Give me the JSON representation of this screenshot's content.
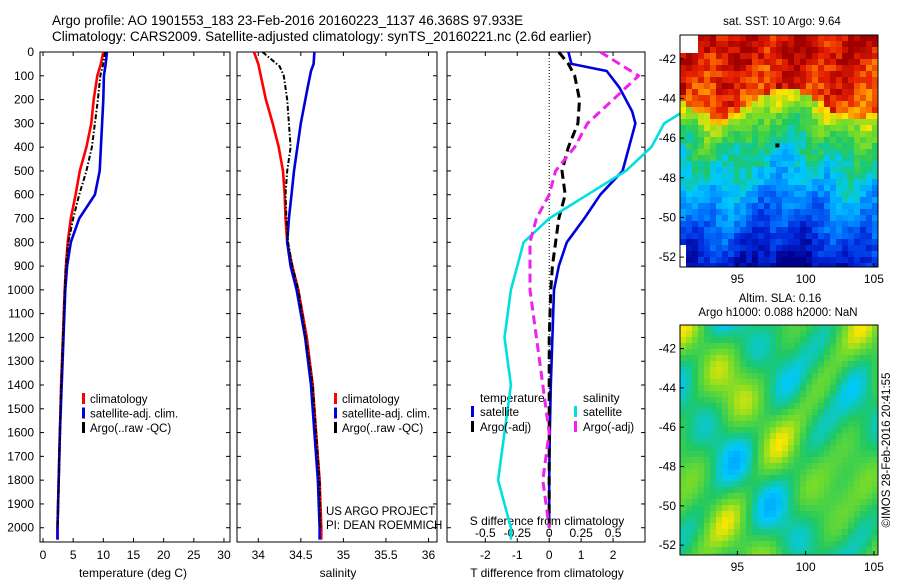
{
  "header": {
    "line1": "Argo profile: AO 1901553_183 23-Feb-2016 20160223_1137 46.368S 97.933E",
    "line2": "Climatology: CARS2009. Satellite-adjusted climatology: synTS_20160221.nc (2.6d earlier)"
  },
  "colors": {
    "climatology": "#ff0000",
    "satellite": "#0000dd",
    "argo": "#000000",
    "sat_salinity_diff": "#00e0e0",
    "argo_salinity_diff": "#ee22ee"
  },
  "credits": {
    "line1": "US ARGO PROJECT",
    "line2": "PI: DEAN ROEMMICH",
    "imos": "©IMOS 28-Feb-2016 20:41:55"
  },
  "chart_data": [
    {
      "type": "line",
      "xlabel": "temperature (deg C)",
      "xlim": [
        -0.5,
        31
      ],
      "xticks": [
        "0",
        "5",
        "10",
        "15",
        "20",
        "25",
        "30"
      ],
      "ylim": [
        2060,
        0
      ],
      "yticks": [
        "0",
        "100",
        "200",
        "300",
        "400",
        "500",
        "600",
        "700",
        "800",
        "900",
        "1000",
        "1100",
        "1200",
        "1300",
        "1400",
        "1500",
        "1600",
        "1700",
        "1800",
        "1900",
        "2000"
      ],
      "legend": [
        "climatology",
        "satellite-adj. clim.",
        "Argo(..raw -QC)"
      ],
      "series": [
        {
          "name": "climatology",
          "style": "solid",
          "depth": [
            0,
            50,
            100,
            200,
            300,
            400,
            500,
            600,
            700,
            800,
            900,
            1000,
            1200,
            1400,
            1600,
            1800,
            2000,
            2050
          ],
          "values": [
            10.0,
            9.6,
            9.0,
            8.4,
            8.0,
            7.2,
            6.1,
            5.4,
            4.6,
            4.1,
            3.8,
            3.6,
            3.3,
            3.0,
            2.8,
            2.6,
            2.4,
            2.4
          ]
        },
        {
          "name": "satellite-adj. clim.",
          "style": "solid",
          "depth": [
            0,
            50,
            100,
            200,
            300,
            400,
            500,
            600,
            700,
            800,
            900,
            1000,
            1200,
            1400,
            1600,
            1800,
            2000,
            2050
          ],
          "values": [
            10.6,
            10.4,
            10.1,
            10.0,
            9.8,
            9.6,
            9.4,
            8.6,
            6.0,
            4.6,
            4.0,
            3.7,
            3.4,
            3.1,
            2.8,
            2.6,
            2.4,
            2.4
          ]
        },
        {
          "name": "Argo(..raw -QC)",
          "style": "dashdot",
          "depth": [
            0,
            50,
            100,
            200,
            300,
            400,
            500,
            600,
            700,
            800,
            900,
            1000,
            1200,
            1400,
            1600,
            1800,
            2000
          ],
          "values": [
            10.3,
            10.0,
            9.5,
            9.1,
            8.6,
            8.1,
            7.2,
            6.0,
            5.0,
            4.2,
            3.8,
            3.6,
            3.3,
            3.0,
            2.8,
            2.6,
            2.4
          ]
        }
      ]
    },
    {
      "type": "line",
      "xlabel": "salinity",
      "xlim": [
        33.75,
        36.1
      ],
      "xticks": [
        "34",
        "34.5",
        "35",
        "35.5",
        "36"
      ],
      "ylim": [
        2060,
        0
      ],
      "legend": [
        "climatology",
        "satellite-adj. clim.",
        "Argo(..raw -QC)"
      ],
      "series": [
        {
          "name": "climatology",
          "style": "solid",
          "depth": [
            0,
            50,
            100,
            200,
            300,
            400,
            500,
            600,
            700,
            800,
            900,
            1000,
            1200,
            1400,
            1600,
            1800,
            2000,
            2050
          ],
          "values": [
            33.95,
            34.0,
            34.03,
            34.09,
            34.17,
            34.24,
            34.29,
            34.31,
            34.32,
            34.34,
            34.4,
            34.47,
            34.57,
            34.64,
            34.68,
            34.72,
            34.74,
            34.74
          ]
        },
        {
          "name": "satellite-adj. clim.",
          "style": "solid",
          "depth": [
            0,
            50,
            80,
            150,
            300,
            500,
            600,
            700,
            800,
            900,
            1000,
            1200,
            1400,
            1600,
            1800,
            2000,
            2050
          ],
          "values": [
            34.66,
            34.65,
            34.62,
            34.58,
            34.5,
            34.42,
            34.39,
            34.36,
            34.34,
            34.38,
            34.45,
            34.55,
            34.62,
            34.66,
            34.7,
            34.72,
            34.72
          ]
        },
        {
          "name": "Argo(..raw -QC)",
          "style": "dashdot",
          "depth": [
            0,
            60,
            100,
            200,
            300,
            400,
            500,
            600,
            700,
            800,
            900,
            1000,
            1200,
            1400,
            1600,
            1800,
            2000
          ],
          "values": [
            34.05,
            34.25,
            34.3,
            34.34,
            34.36,
            34.38,
            34.34,
            34.32,
            34.33,
            34.35,
            34.4,
            34.47,
            34.56,
            34.64,
            34.68,
            34.72,
            34.73
          ]
        }
      ]
    },
    {
      "type": "line",
      "xlabel": "T difference from climatology",
      "xlabel_top": "S difference from climatology",
      "xlim": [
        -3.2,
        3.0
      ],
      "xticks": [
        "-2",
        "-1",
        "0",
        "1",
        "2"
      ],
      "top_ticks": [
        "-0.5",
        "-0.25",
        "0",
        "0.25",
        "0.5"
      ],
      "ylim": [
        2060,
        0
      ],
      "legend": {
        "temperature_heading": "temperature",
        "salinity_heading": "salinity",
        "entries": [
          "satellite",
          "Argo(-adj)",
          "satellite",
          "Argo(-adj)"
        ]
      },
      "series": [
        {
          "name": "satellite T",
          "style": "solid",
          "depth": [
            0,
            50,
            80,
            150,
            250,
            300,
            400,
            500,
            600,
            700,
            800,
            900,
            1000,
            1200,
            1400,
            1600,
            1800,
            2000
          ],
          "values": [
            0.6,
            0.7,
            1.8,
            2.2,
            2.6,
            2.7,
            2.5,
            2.3,
            1.6,
            1.1,
            0.55,
            0.3,
            0.15,
            0.1,
            0.05,
            0.02,
            0.0,
            0.0
          ]
        },
        {
          "name": "Argo T",
          "style": "dashed",
          "depth": [
            0,
            50,
            100,
            200,
            300,
            400,
            500,
            600,
            700,
            800,
            900,
            1000,
            1200,
            1400,
            1600,
            1800,
            2000
          ],
          "values": [
            0.3,
            0.6,
            0.8,
            0.95,
            0.9,
            0.6,
            0.4,
            0.5,
            0.3,
            0.2,
            0.1,
            0.05,
            0.0,
            0.0,
            0.0,
            0.0,
            0.0
          ]
        },
        {
          "name": "satellite S",
          "style": "solid",
          "depth": [
            0,
            30,
            50,
            100,
            200,
            300,
            400,
            500,
            600,
            700,
            800,
            900,
            1000,
            1200,
            1400,
            1600,
            1800,
            2000,
            2050
          ],
          "values": [
            1.2,
            1.5,
            1.5,
            1.4,
            1.2,
            0.9,
            0.8,
            0.6,
            0.3,
            0.0,
            -0.2,
            -0.25,
            -0.3,
            -0.35,
            -0.3,
            -0.35,
            -0.4,
            -0.3,
            -0.3
          ]
        },
        {
          "name": "Argo S",
          "style": "dashed",
          "depth": [
            0,
            100,
            200,
            300,
            400,
            500,
            600,
            700,
            800,
            900,
            1000,
            1200,
            1400,
            1600,
            1800,
            2000
          ],
          "values": [
            0.4,
            0.7,
            0.5,
            0.3,
            0.2,
            0.05,
            0.0,
            -0.1,
            -0.15,
            -0.15,
            -0.15,
            -0.1,
            -0.05,
            0.0,
            -0.05,
            0.0
          ]
        }
      ]
    },
    {
      "type": "heatmap",
      "title": "sat. SST: 10 Argo: 9.64",
      "xticks": [
        "95",
        "100",
        "105"
      ],
      "yticks": [
        "-42",
        "-44",
        "-46",
        "-48",
        "-50",
        "-52"
      ],
      "xlim": [
        90.8,
        105.3
      ],
      "ylim": [
        -52.5,
        -40.8
      ],
      "argo_position": [
        97.933,
        -46.368
      ]
    },
    {
      "type": "heatmap",
      "title": "Altim. SLA: 0.16",
      "subtitle": "Argo h1000: 0.088 h2000: NaN",
      "xticks": [
        "95",
        "100",
        "105"
      ],
      "yticks": [
        "-42",
        "-44",
        "-46",
        "-48",
        "-50",
        "-52"
      ],
      "xlim": [
        90.8,
        105.3
      ],
      "ylim": [
        -52.5,
        -40.8
      ]
    }
  ]
}
